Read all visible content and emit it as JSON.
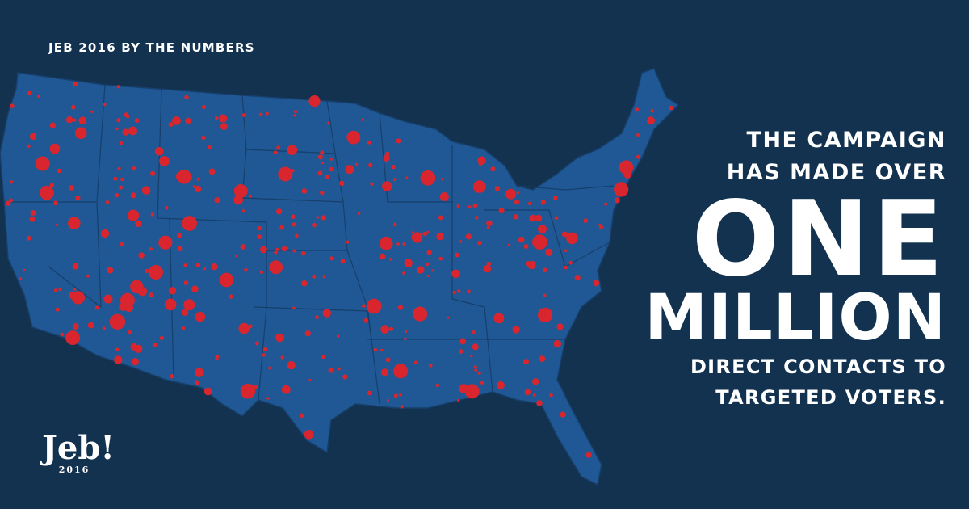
{
  "header": {
    "title": "JEB 2016 BY THE NUMBERS"
  },
  "headline": {
    "lines": [
      "THE CAMPAIGN",
      "HAS MADE OVER"
    ],
    "big": [
      "ONE",
      "MILLION"
    ],
    "sub": [
      "DIRECT CONTACTS TO",
      "TARGETED VOTERS."
    ]
  },
  "logo": {
    "name": "Jeb!",
    "year": "2016"
  }
}
